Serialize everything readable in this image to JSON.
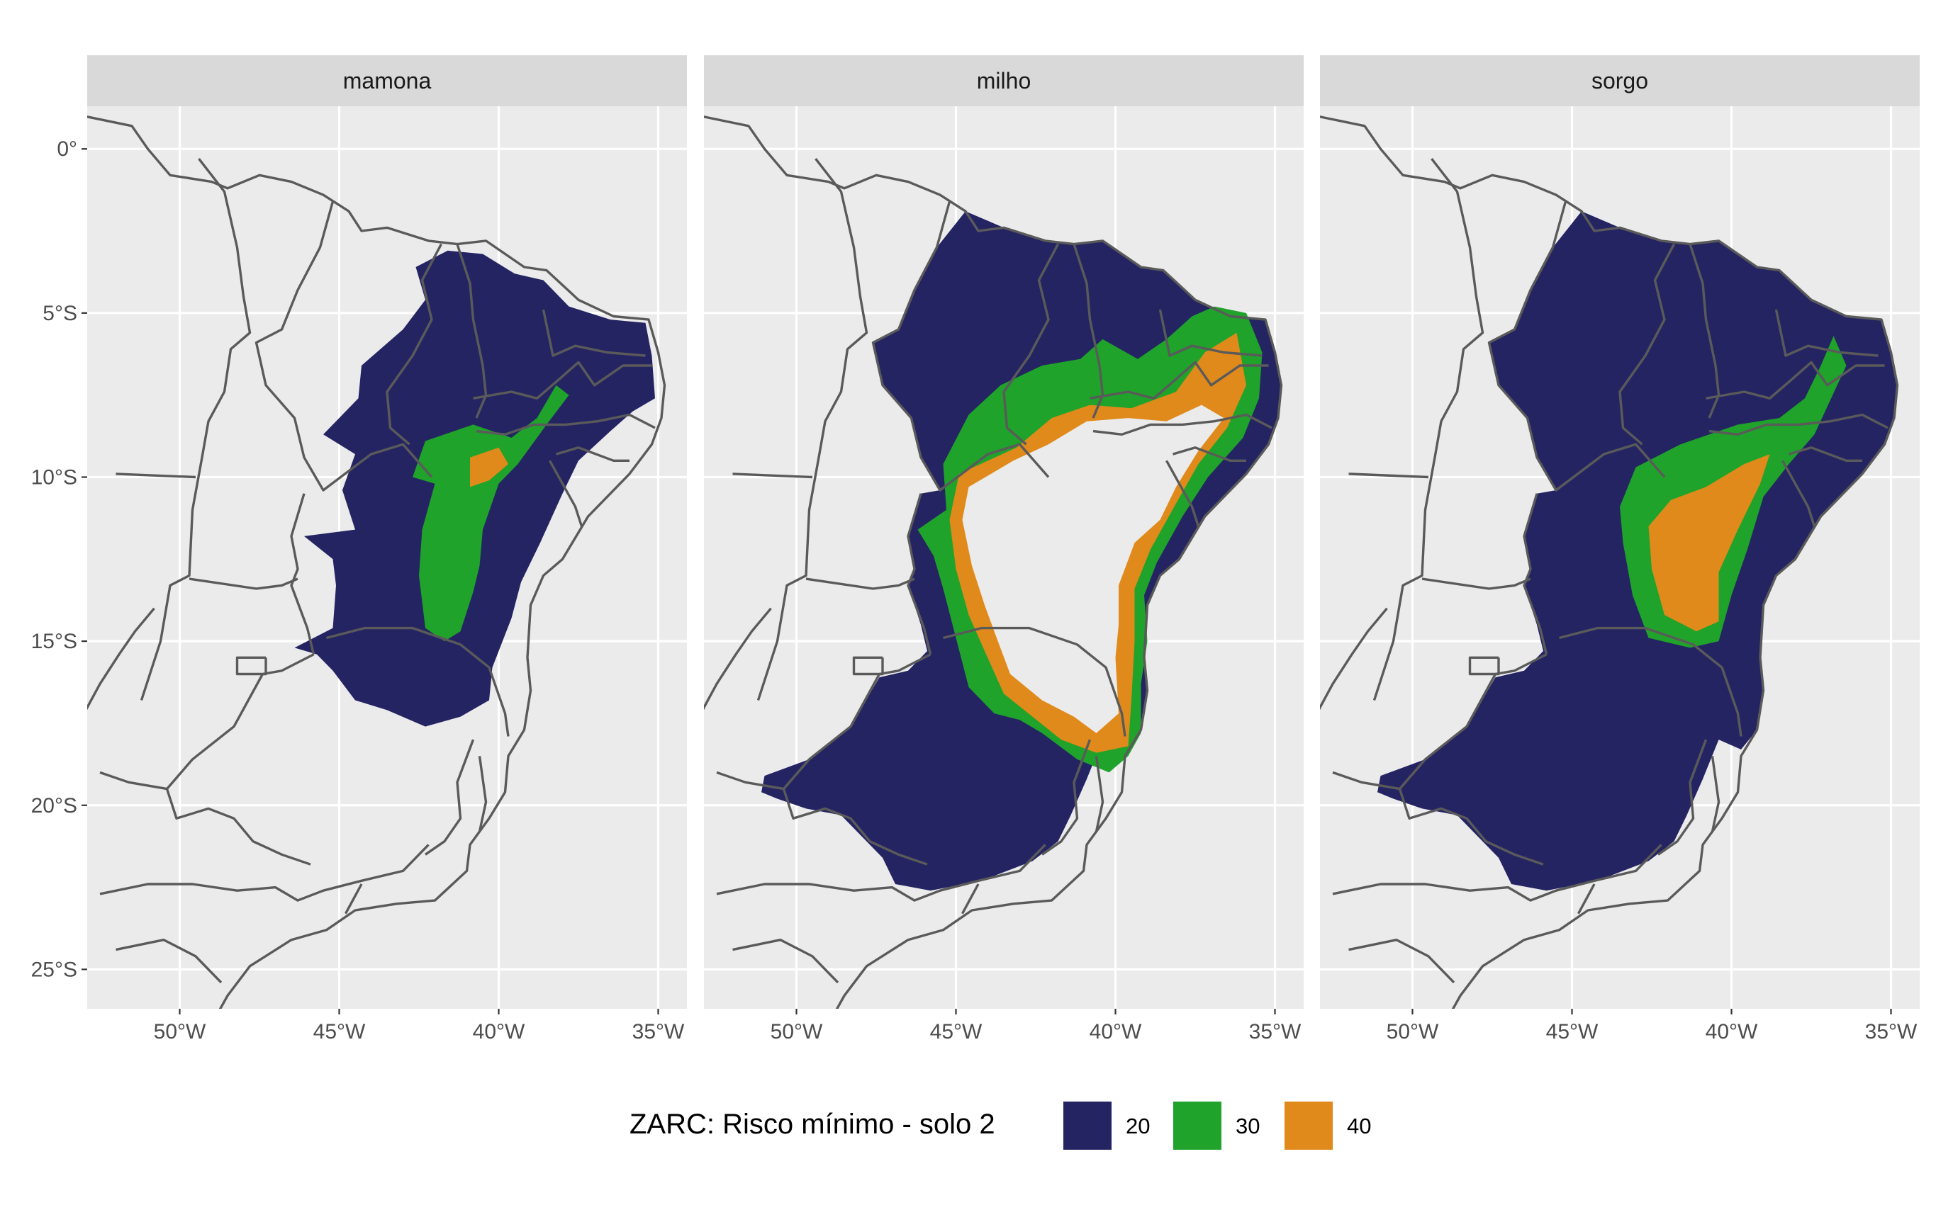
{
  "chart_data": {
    "type": "choropleth-map",
    "facets": [
      {
        "title": "mamona",
        "classes": {
          "20": "large area of eastern Bahia interior, western Pernambuco, Piaui border and northern Minas Gerais",
          "30": "central Bahia semi-arid strip",
          "40": "small patches in central-north Bahia"
        }
      },
      {
        "title": "milho",
        "classes": {
          "20": "Piaui, Maranhao east, Ceara west, Minas Gerais, western Bahia, coastal Bahia and northeast coast",
          "30": "ring around the semi-arid core",
          "40": "inner ring around the semi-arid core (core itself unclassified)"
        }
      },
      {
        "title": "sorgo",
        "classes": {
          "20": "almost the whole Northeast region and Minas Gerais",
          "30": "central Bahia semi-arid strip and northeast tail",
          "40": "core of central Bahia semi-arid strip"
        }
      }
    ],
    "x_axis": {
      "ticks": [
        "50°W",
        "45°W",
        "40°W",
        "35°W"
      ],
      "tick_values": [
        -50,
        -45,
        -40,
        -35
      ],
      "range": [
        -52.9,
        -34.1
      ]
    },
    "y_axis": {
      "ticks": [
        "0°",
        "5°S",
        "10°S",
        "15°S",
        "20°S",
        "25°S"
      ],
      "tick_values": [
        0,
        -5,
        -10,
        -15,
        -20,
        -25
      ],
      "range": [
        -26.2,
        1.3
      ]
    },
    "legend": {
      "title": "ZARC: Risco mínimo - solo 2",
      "position": "bottom",
      "entries": [
        {
          "label": "20",
          "color": "#252463"
        },
        {
          "label": "30",
          "color": "#1FA32A"
        },
        {
          "label": "40",
          "color": "#E08A1B"
        }
      ]
    },
    "grid": true
  },
  "colors": {
    "panel_background": "#EBEBEB",
    "strip_background": "#D9D9D9",
    "gridline": "#FFFFFF",
    "state_border": "#5A5A5A",
    "class_20": "#252463",
    "class_30": "#1FA32A",
    "class_40": "#E08A1B"
  }
}
